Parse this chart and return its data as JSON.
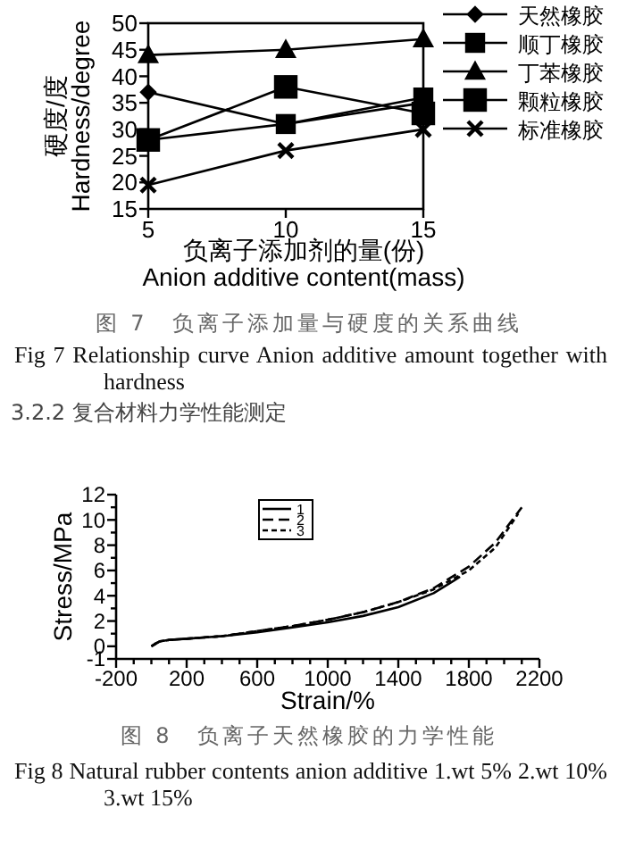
{
  "chart_data": [
    {
      "type": "line",
      "xlabel": "负离子添加剂的量(份)\nAnion additive content(mass)",
      "ylabel": "硬度/度\nHardness/degree",
      "x": [
        5,
        10,
        15
      ],
      "xlim": [
        5,
        15
      ],
      "xticks": [
        5,
        10,
        15
      ],
      "ylim": [
        15,
        50
      ],
      "yticks": [
        15,
        20,
        25,
        30,
        35,
        40,
        45,
        50
      ],
      "grid": false,
      "legend": "right",
      "series": [
        {
          "name": "天然橡胶",
          "color": "#000000",
          "marker": "diamond",
          "values": [
            37,
            31,
            35
          ]
        },
        {
          "name": "顺丁橡胶",
          "color": "#000000",
          "marker": "square",
          "values": [
            28,
            31,
            36
          ]
        },
        {
          "name": "丁苯橡胶",
          "color": "#000000",
          "marker": "triangle",
          "values": [
            44,
            45,
            47
          ]
        },
        {
          "name": "颗粒橡胶",
          "color": "#000000",
          "marker": "square",
          "values": [
            28,
            38,
            33
          ]
        },
        {
          "name": "标准橡胶",
          "color": "#000000",
          "marker": "cross",
          "values": [
            19.5,
            26,
            30
          ]
        }
      ],
      "annotations": [
        "图 7　负离子添加量与硬度的关系曲线",
        "Fig 7 Relationship curve Anion additive amount together with hardness"
      ]
    },
    {
      "type": "line",
      "xlabel": "Strain/%",
      "ylabel": "Stress/MPa",
      "xlim": [
        -200,
        2200
      ],
      "ylim": [
        -1,
        12
      ],
      "grid": false,
      "legend": "top",
      "marker": "none",
      "xticks": [
        -200,
        {
          "value": -100,
          "label": null
        },
        {
          "value": 0,
          "label": null
        },
        {
          "value": 100,
          "label": null
        },
        200,
        {
          "value": 300,
          "label": null
        },
        {
          "value": 400,
          "label": null
        },
        {
          "value": 500,
          "label": null
        },
        600,
        {
          "value": 700,
          "label": null
        },
        {
          "value": 800,
          "label": null
        },
        {
          "value": 900,
          "label": null
        },
        1000,
        {
          "value": 1100,
          "label": null
        },
        {
          "value": 1200,
          "label": null
        },
        {
          "value": 1300,
          "label": null
        },
        1400,
        {
          "value": 1500,
          "label": null
        },
        {
          "value": 1600,
          "label": null
        },
        {
          "value": 1700,
          "label": null
        },
        1800,
        {
          "value": 1900,
          "label": null
        },
        {
          "value": 2000,
          "label": null
        },
        {
          "value": 2100,
          "label": null
        },
        2200
      ],
      "yticks": [
        -1,
        0,
        {
          "value": 1,
          "label": null
        },
        2,
        {
          "value": 3,
          "label": null
        },
        4,
        {
          "value": 5,
          "label": null
        },
        6,
        {
          "value": 7,
          "label": null
        },
        8,
        {
          "value": 9,
          "label": null
        },
        10,
        {
          "value": 11,
          "label": null
        },
        12
      ],
      "series": [
        {
          "name": "1",
          "color": "#000000",
          "line_style": "solid",
          "x": [
            0,
            20,
            50,
            100,
            200,
            400,
            600,
            800,
            1000,
            1200,
            1400,
            1600,
            1750
          ],
          "values": [
            0,
            0.2,
            0.4,
            0.5,
            0.6,
            0.8,
            1.1,
            1.5,
            1.9,
            2.4,
            3.1,
            4.2,
            5.5
          ]
        },
        {
          "name": "2",
          "color": "#000000",
          "line_style": "dashed",
          "x": [
            0,
            50,
            100,
            200,
            400,
            600,
            800,
            1000,
            1200,
            1400,
            1600,
            1800,
            1950,
            2100
          ],
          "values": [
            0,
            0.4,
            0.5,
            0.6,
            0.8,
            1.2,
            1.6,
            2.1,
            2.7,
            3.5,
            4.6,
            6.3,
            8.2,
            11
          ]
        },
        {
          "name": "3",
          "color": "#000000",
          "line_style": "dotted",
          "x": [
            0,
            50,
            100,
            200,
            400,
            600,
            800,
            1000,
            1200,
            1400,
            1600,
            1800,
            1950,
            2080
          ],
          "values": [
            0,
            0.4,
            0.5,
            0.6,
            0.8,
            1.2,
            1.6,
            2.1,
            2.7,
            3.5,
            4.5,
            6.0,
            7.8,
            10.5
          ]
        }
      ],
      "annotations": [
        "3.2.2 复合材料力学性能测定",
        "图 8　负离子天然橡胶的力学性能",
        "Fig 8 Natural rubber contents anion additive 1.wt 5% 2.wt 10% 3.wt 15%"
      ]
    }
  ]
}
